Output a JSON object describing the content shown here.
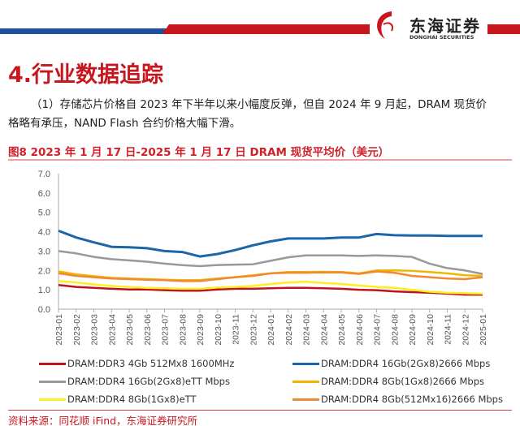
{
  "header": {
    "logo_cn": "东海证券",
    "logo_en": "DONGHAI SECURITIES",
    "brand_colors": {
      "red": "#c8161e",
      "blue": "#1f4e9a"
    }
  },
  "section_title": "4.行业数据追踪",
  "paragraph": "（1）存储芯片价格自 2023 年下半年以来小幅度反弹，但自 2024 年 9 月起，DRAM 现货价格略有承压，NAND Flash 合约价格大幅下滑。",
  "figure_title": "图8  2023 年 1 月 17 日-2025 年 1 月 17 日 DRAM 现货平均价（美元）",
  "source": "资料来源：同花顺 iFind，东海证券研究所",
  "chart_data": {
    "type": "line",
    "ylim": [
      0,
      7
    ],
    "yticks": [
      "0.0",
      "1.0",
      "2.0",
      "3.0",
      "4.0",
      "5.0",
      "6.0",
      "7.0"
    ],
    "grid": false,
    "legend_position": "bottom",
    "x": [
      "2023-01",
      "2023-02",
      "2023-03",
      "2023-04",
      "2023-05",
      "2023-06",
      "2023-07",
      "2023-08",
      "2023-09",
      "2023-10",
      "2023-11",
      "2023-12",
      "2024-01",
      "2024-02",
      "2024-03",
      "2024-04",
      "2024-05",
      "2024-06",
      "2024-07",
      "2024-08",
      "2024-09",
      "2024-10",
      "2024-11",
      "2024-12",
      "2025-01"
    ],
    "series": [
      {
        "name": "DRAM:DDR3 4Gb 512Mx8 1600MHz",
        "color": "#c0121c",
        "values": [
          1.25,
          1.15,
          1.1,
          1.05,
          1.02,
          1.02,
          0.98,
          0.95,
          0.95,
          1.02,
          1.05,
          1.05,
          1.08,
          1.1,
          1.1,
          1.08,
          1.05,
          1.0,
          0.98,
          0.92,
          0.88,
          0.85,
          0.8,
          0.75,
          0.75
        ]
      },
      {
        "name": "DRAM:DDR4 16Gb(2Gx8)2666 Mbps",
        "color": "#1a66a8",
        "values": [
          4.05,
          3.7,
          3.45,
          3.22,
          3.2,
          3.15,
          3.0,
          2.95,
          2.72,
          2.85,
          3.05,
          3.3,
          3.5,
          3.65,
          3.65,
          3.65,
          3.7,
          3.7,
          3.88,
          3.82,
          3.8,
          3.8,
          3.78,
          3.78,
          3.78
        ]
      },
      {
        "name": "DRAM:DDR4 16Gb(2Gx8)eTT Mbps",
        "color": "#999999",
        "values": [
          3.0,
          2.88,
          2.7,
          2.58,
          2.52,
          2.45,
          2.35,
          2.27,
          2.22,
          2.28,
          2.3,
          2.32,
          2.5,
          2.68,
          2.78,
          2.78,
          2.78,
          2.75,
          2.78,
          2.75,
          2.7,
          2.35,
          2.12,
          2.0,
          1.82
        ]
      },
      {
        "name": "DRAM:DDR4 8Gb(1Gx8)2666 Mbps",
        "color": "#f2b600",
        "values": [
          1.95,
          1.8,
          1.7,
          1.62,
          1.58,
          1.55,
          1.52,
          1.5,
          1.5,
          1.58,
          1.65,
          1.75,
          1.85,
          1.92,
          1.92,
          1.93,
          1.92,
          1.85,
          2.0,
          2.0,
          1.98,
          1.92,
          1.85,
          1.75,
          1.72
        ]
      },
      {
        "name": "DRAM:DDR4 8Gb(1Gx8)eTT",
        "color": "#ffee22",
        "values": [
          1.45,
          1.38,
          1.28,
          1.2,
          1.15,
          1.1,
          1.08,
          1.05,
          1.05,
          1.12,
          1.15,
          1.2,
          1.3,
          1.38,
          1.42,
          1.35,
          1.3,
          1.22,
          1.15,
          1.1,
          1.0,
          0.9,
          0.85,
          0.82,
          0.8
        ]
      },
      {
        "name": "DRAM:DDR4 8Gb(512Mx16)2666 Mbps",
        "color": "#f08a30",
        "values": [
          1.85,
          1.72,
          1.65,
          1.58,
          1.55,
          1.52,
          1.5,
          1.45,
          1.45,
          1.55,
          1.65,
          1.72,
          1.85,
          1.88,
          1.88,
          1.9,
          1.9,
          1.82,
          1.95,
          1.88,
          1.72,
          1.65,
          1.58,
          1.55,
          1.65
        ]
      }
    ]
  }
}
